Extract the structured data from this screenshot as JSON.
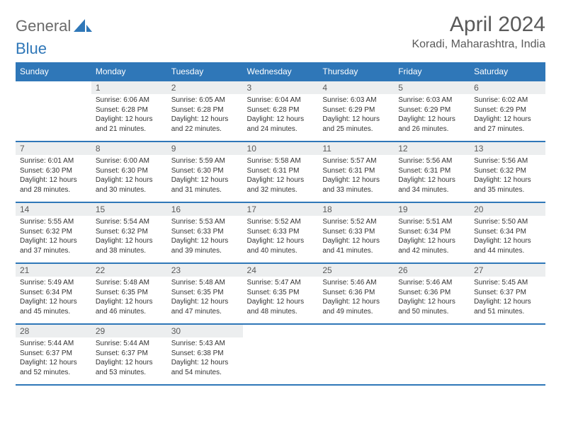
{
  "brand": {
    "part1": "General",
    "part2": "Blue"
  },
  "title": "April 2024",
  "location": "Koradi, Maharashtra, India",
  "colors": {
    "accent": "#2f77b8",
    "daynum_bg": "#eceeef",
    "text": "#333333",
    "muted": "#5a5a5a",
    "bg": "#ffffff"
  },
  "week_headers": [
    "Sunday",
    "Monday",
    "Tuesday",
    "Wednesday",
    "Thursday",
    "Friday",
    "Saturday"
  ],
  "days": [
    {
      "n": 1,
      "sunrise": "6:06 AM",
      "sunset": "6:28 PM",
      "daylight": "12 hours and 21 minutes."
    },
    {
      "n": 2,
      "sunrise": "6:05 AM",
      "sunset": "6:28 PM",
      "daylight": "12 hours and 22 minutes."
    },
    {
      "n": 3,
      "sunrise": "6:04 AM",
      "sunset": "6:28 PM",
      "daylight": "12 hours and 24 minutes."
    },
    {
      "n": 4,
      "sunrise": "6:03 AM",
      "sunset": "6:29 PM",
      "daylight": "12 hours and 25 minutes."
    },
    {
      "n": 5,
      "sunrise": "6:03 AM",
      "sunset": "6:29 PM",
      "daylight": "12 hours and 26 minutes."
    },
    {
      "n": 6,
      "sunrise": "6:02 AM",
      "sunset": "6:29 PM",
      "daylight": "12 hours and 27 minutes."
    },
    {
      "n": 7,
      "sunrise": "6:01 AM",
      "sunset": "6:30 PM",
      "daylight": "12 hours and 28 minutes."
    },
    {
      "n": 8,
      "sunrise": "6:00 AM",
      "sunset": "6:30 PM",
      "daylight": "12 hours and 30 minutes."
    },
    {
      "n": 9,
      "sunrise": "5:59 AM",
      "sunset": "6:30 PM",
      "daylight": "12 hours and 31 minutes."
    },
    {
      "n": 10,
      "sunrise": "5:58 AM",
      "sunset": "6:31 PM",
      "daylight": "12 hours and 32 minutes."
    },
    {
      "n": 11,
      "sunrise": "5:57 AM",
      "sunset": "6:31 PM",
      "daylight": "12 hours and 33 minutes."
    },
    {
      "n": 12,
      "sunrise": "5:56 AM",
      "sunset": "6:31 PM",
      "daylight": "12 hours and 34 minutes."
    },
    {
      "n": 13,
      "sunrise": "5:56 AM",
      "sunset": "6:32 PM",
      "daylight": "12 hours and 35 minutes."
    },
    {
      "n": 14,
      "sunrise": "5:55 AM",
      "sunset": "6:32 PM",
      "daylight": "12 hours and 37 minutes."
    },
    {
      "n": 15,
      "sunrise": "5:54 AM",
      "sunset": "6:32 PM",
      "daylight": "12 hours and 38 minutes."
    },
    {
      "n": 16,
      "sunrise": "5:53 AM",
      "sunset": "6:33 PM",
      "daylight": "12 hours and 39 minutes."
    },
    {
      "n": 17,
      "sunrise": "5:52 AM",
      "sunset": "6:33 PM",
      "daylight": "12 hours and 40 minutes."
    },
    {
      "n": 18,
      "sunrise": "5:52 AM",
      "sunset": "6:33 PM",
      "daylight": "12 hours and 41 minutes."
    },
    {
      "n": 19,
      "sunrise": "5:51 AM",
      "sunset": "6:34 PM",
      "daylight": "12 hours and 42 minutes."
    },
    {
      "n": 20,
      "sunrise": "5:50 AM",
      "sunset": "6:34 PM",
      "daylight": "12 hours and 44 minutes."
    },
    {
      "n": 21,
      "sunrise": "5:49 AM",
      "sunset": "6:34 PM",
      "daylight": "12 hours and 45 minutes."
    },
    {
      "n": 22,
      "sunrise": "5:48 AM",
      "sunset": "6:35 PM",
      "daylight": "12 hours and 46 minutes."
    },
    {
      "n": 23,
      "sunrise": "5:48 AM",
      "sunset": "6:35 PM",
      "daylight": "12 hours and 47 minutes."
    },
    {
      "n": 24,
      "sunrise": "5:47 AM",
      "sunset": "6:35 PM",
      "daylight": "12 hours and 48 minutes."
    },
    {
      "n": 25,
      "sunrise": "5:46 AM",
      "sunset": "6:36 PM",
      "daylight": "12 hours and 49 minutes."
    },
    {
      "n": 26,
      "sunrise": "5:46 AM",
      "sunset": "6:36 PM",
      "daylight": "12 hours and 50 minutes."
    },
    {
      "n": 27,
      "sunrise": "5:45 AM",
      "sunset": "6:37 PM",
      "daylight": "12 hours and 51 minutes."
    },
    {
      "n": 28,
      "sunrise": "5:44 AM",
      "sunset": "6:37 PM",
      "daylight": "12 hours and 52 minutes."
    },
    {
      "n": 29,
      "sunrise": "5:44 AM",
      "sunset": "6:37 PM",
      "daylight": "12 hours and 53 minutes."
    },
    {
      "n": 30,
      "sunrise": "5:43 AM",
      "sunset": "6:38 PM",
      "daylight": "12 hours and 54 minutes."
    }
  ],
  "labels": {
    "sunrise": "Sunrise:",
    "sunset": "Sunset:",
    "daylight": "Daylight:"
  },
  "layout": {
    "first_day_offset": 1,
    "total_cells": 35
  }
}
